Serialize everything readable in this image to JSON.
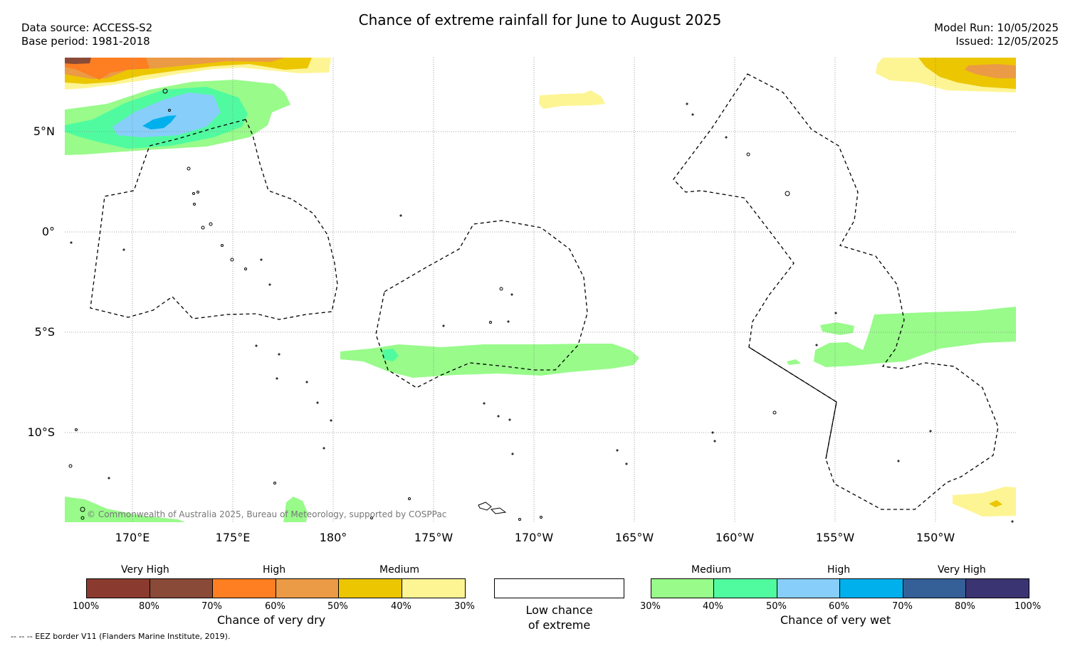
{
  "header": {
    "title": "Chance of extreme rainfall for June to August 2025",
    "data_source": "Data source: ACCESS-S2",
    "base_period": "Base period: 1981-2018",
    "model_run": "Model Run: 10/05/2025",
    "issued": "Issued: 12/05/2025"
  },
  "map": {
    "lat_ticks": [
      "5°N",
      "0°",
      "5°S",
      "10°S"
    ],
    "lon_ticks": [
      "170°E",
      "175°E",
      "180°",
      "175°W",
      "170°W",
      "165°W",
      "160°W",
      "155°W",
      "150°W"
    ],
    "copyright": "© Commonwealth of Australia 2025, Bureau of Meteorology, supported by COSPPac",
    "colors": {
      "dry_30_40": "#fdf594",
      "dry_40_50": "#ecc600",
      "dry_50_60": "#eb9a46",
      "dry_60_70": "#fe7e22",
      "dry_70_80": "#894a38",
      "dry_80_100": "#8b3a2f",
      "wet_30_40": "#98fb8a",
      "wet_40_50": "#50fba0",
      "wet_50_60": "#87cefa",
      "wet_60_70": "#00b0ed",
      "wet_70_80": "#355f97",
      "wet_80_100": "#3a3572"
    }
  },
  "legend_dry": {
    "group_labels": [
      "Very High",
      "High",
      "Medium"
    ],
    "ticks": [
      "100%",
      "80%",
      "70%",
      "60%",
      "50%",
      "40%",
      "30%"
    ],
    "title": "Chance of very dry"
  },
  "legend_low": {
    "line1": "Low chance",
    "line2": "of extreme"
  },
  "legend_wet": {
    "group_labels": [
      "Medium",
      "High",
      "Very High"
    ],
    "ticks": [
      "30%",
      "40%",
      "50%",
      "60%",
      "70%",
      "80%",
      "100%"
    ],
    "title": "Chance of very wet"
  },
  "footnote": "--  --  -- EEZ border V11 (Flanders Marine Institute, 2019)."
}
